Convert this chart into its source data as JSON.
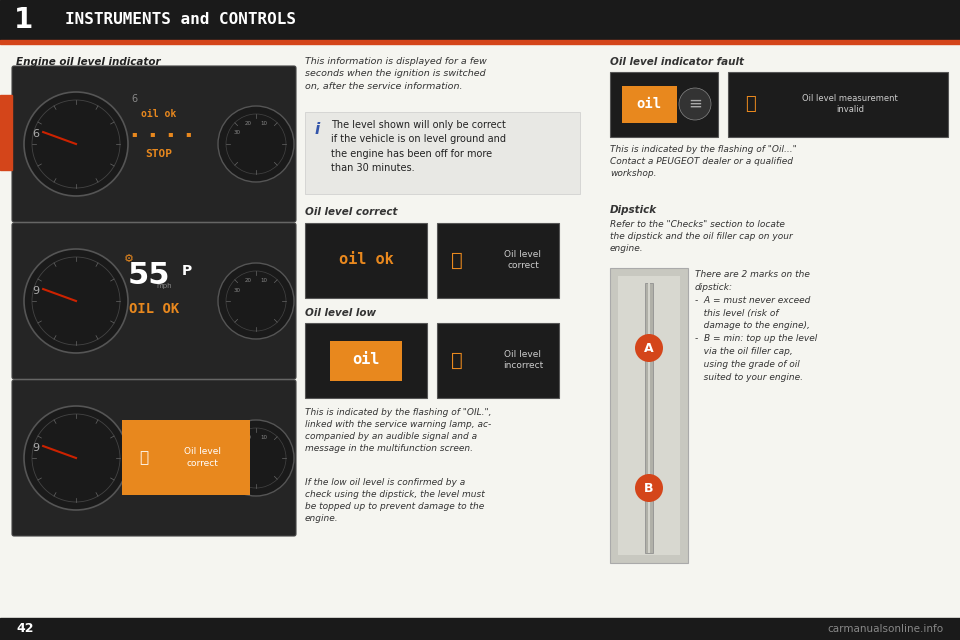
{
  "page_bg": "#f5f5f0",
  "header_bg": "#1a1a1a",
  "header_text": "INSTRUMENTS and CONTROLS",
  "header_number": "1",
  "header_text_color": "#ffffff",
  "accent_color": "#d4451a",
  "orange_color": "#e8881e",
  "dark_panel": "#282828",
  "dark_panel2": "#1e1e1e",
  "section1_title": "Engine oil level indicator",
  "section2_title": "Oil level indicator fault",
  "section3_title": "Oil level correct",
  "section4_title": "Oil level low",
  "section5_title": "Dipstick",
  "info_text": "The level shown will only be correct\nif the vehicle is on level ground and\nthe engine has been off for more\nthan 30 minutes.",
  "intro_text": "This information is displayed for a few\nseconds when the ignition is switched\non, after the service information.",
  "fault_text1": "This is indicated by the flashing of \"Oil...\"",
  "fault_text2": "Contact a PEUGEOT dealer or a qualified\nworkshop.",
  "dipstick_text": "Refer to the \"Checks\" section to locate\nthe dipstick and the oil filler cap on your\nengine.",
  "oil_level_correct_label": "Oil level\ncorrect",
  "oil_level_incorrect_label": "Oil level\nincorrect",
  "oil_measurement_label": "Oil level measurement\ninvalid",
  "oil_ok_text": "OIL OK",
  "page_number": "42",
  "watermark": "carmanualsonline.info",
  "low_text1": "This is indicated by the flashing of \"OIL.\",",
  "low_text2": "linked with the service warning lamp, ac-\ncompanied by an audible signal and a\nmessage in the multifunction screen.",
  "low_text3": "If the low oil level is confirmed by a\ncheck using the dipstick, the level must\nbe topped up to prevent damage to the\nengine.",
  "dipstick_mark_text": "There are 2 marks on the\ndipstick:\n-  A = must never exceed\n   this level (risk of\n   damage to the engine),\n-  B = min: top up the level\n   via the oil filler cap,\n   using the grade of oil\n   suited to your engine."
}
